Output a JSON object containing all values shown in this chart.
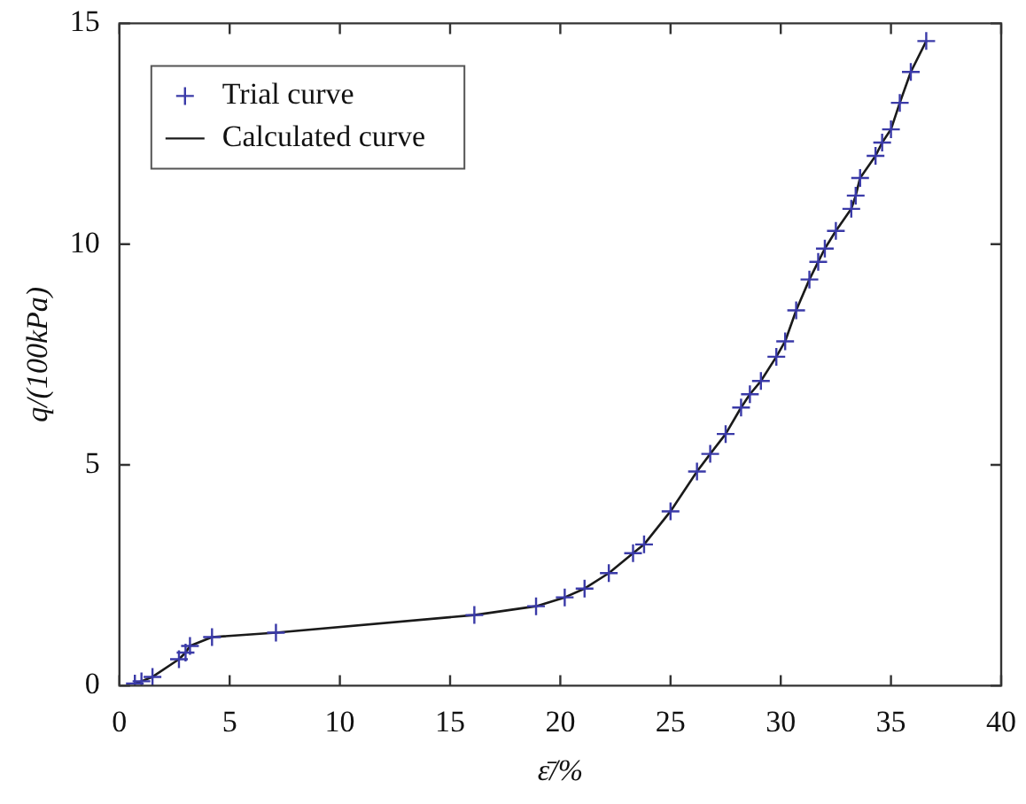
{
  "chart_data": {
    "type": "line",
    "xlabel": "ε̄/%",
    "ylabel": "q/(100kPa)",
    "xlim": [
      0,
      40
    ],
    "xticks": [
      0,
      5,
      10,
      15,
      20,
      25,
      30,
      35,
      40
    ],
    "ylim": [
      0,
      15
    ],
    "yticks": [
      0,
      5,
      10,
      15
    ],
    "grid": false,
    "legend": "top left",
    "series": [
      {
        "name": "Trial curve",
        "type": "scatter",
        "marker": "cross",
        "color": "#3a3aa8",
        "x": [
          0.7,
          1.0,
          1.5,
          2.7,
          3.0,
          3.2,
          4.2,
          7.1,
          16.1,
          18.9,
          20.2,
          21.1,
          22.2,
          23.3,
          23.8,
          25.0,
          26.2,
          26.8,
          27.5,
          28.2,
          28.6,
          29.1,
          29.8,
          30.2,
          30.7,
          31.3,
          31.7,
          32.0,
          32.5,
          33.2,
          33.4,
          33.6,
          34.3,
          34.6,
          35.0,
          35.4,
          35.9,
          36.6
        ],
        "values": [
          0.05,
          0.1,
          0.2,
          0.6,
          0.75,
          0.9,
          1.1,
          1.2,
          1.6,
          1.8,
          2.0,
          2.2,
          2.55,
          3.0,
          3.2,
          3.95,
          4.85,
          5.25,
          5.7,
          6.3,
          6.6,
          6.9,
          7.45,
          7.8,
          8.5,
          9.2,
          9.6,
          9.9,
          10.3,
          10.8,
          11.1,
          11.5,
          12.0,
          12.3,
          12.6,
          13.2,
          13.9,
          14.6
        ]
      },
      {
        "name": "Calculated curve",
        "marker": "none",
        "line_style": "solid",
        "color": "#1a1a1a",
        "x": [
          0.7,
          1.0,
          1.5,
          2.7,
          3.0,
          3.2,
          4.2,
          7.1,
          16.1,
          18.9,
          20.2,
          21.1,
          22.2,
          23.3,
          23.8,
          25.0,
          26.2,
          26.8,
          27.5,
          28.2,
          28.6,
          29.1,
          29.8,
          30.2,
          30.7,
          31.3,
          31.7,
          32.0,
          32.5,
          33.2,
          33.4,
          33.6,
          34.3,
          34.6,
          35.0,
          35.4,
          35.9,
          36.6
        ],
        "values": [
          0.05,
          0.1,
          0.2,
          0.6,
          0.75,
          0.9,
          1.1,
          1.2,
          1.6,
          1.8,
          2.0,
          2.2,
          2.55,
          3.0,
          3.2,
          3.95,
          4.85,
          5.25,
          5.7,
          6.3,
          6.6,
          6.9,
          7.45,
          7.8,
          8.5,
          9.2,
          9.6,
          9.9,
          10.3,
          10.8,
          11.1,
          11.5,
          12.0,
          12.3,
          12.6,
          13.2,
          13.9,
          14.6
        ]
      }
    ]
  }
}
